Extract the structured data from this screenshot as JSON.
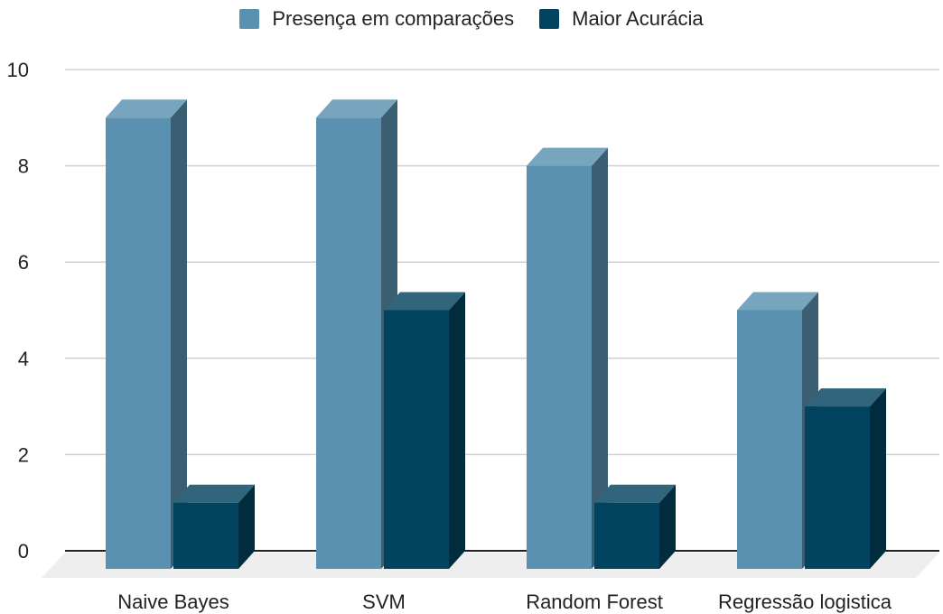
{
  "chart_data": {
    "type": "bar",
    "title": "",
    "xlabel": "",
    "ylabel": "",
    "categories": [
      "Naive Bayes",
      "SVM",
      "Random Forest",
      "Regressão logistica"
    ],
    "series": [
      {
        "name": "Presença em comparações",
        "values": [
          9,
          9,
          8,
          5
        ],
        "color": "#5a91b0"
      },
      {
        "name": "Maior Acurácia",
        "values": [
          1,
          5,
          1,
          3
        ],
        "color": "#02435f"
      }
    ],
    "ylim": [
      0,
      10
    ],
    "yticks": [
      "0",
      "2",
      "4",
      "6",
      "8",
      "10"
    ],
    "grid": true,
    "legend_position": "top",
    "style": "3d-column"
  }
}
